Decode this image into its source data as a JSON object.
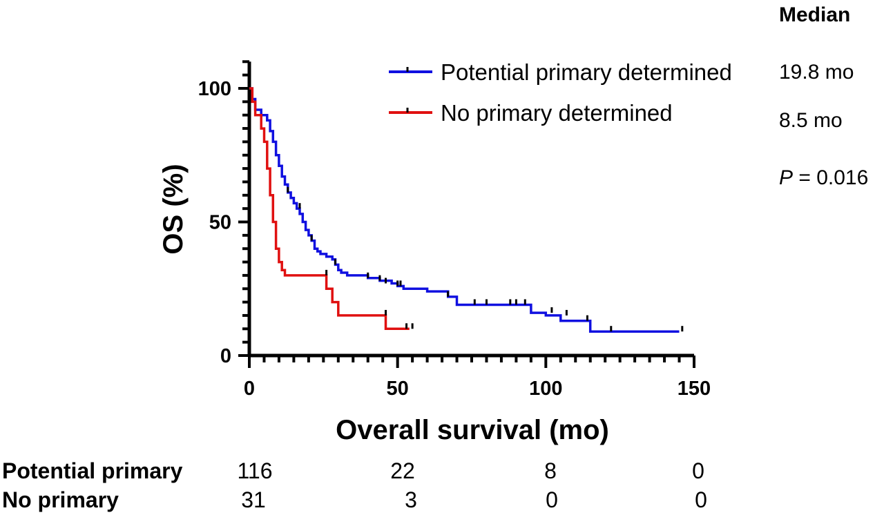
{
  "chart_data": {
    "type": "line",
    "step": true,
    "xlabel": "Overall survival (mo)",
    "ylabel": "OS (%)",
    "xlim": [
      0,
      150
    ],
    "ylim": [
      0,
      110
    ],
    "x_ticks": [
      "0",
      "50",
      "100",
      "150"
    ],
    "y_ticks": [
      "0",
      "50",
      "100"
    ],
    "legend_position": "top-right",
    "series": [
      {
        "name": "Potential primary determined",
        "color": "#1010e0",
        "x": [
          0,
          1,
          2,
          4,
          6,
          7,
          8,
          9,
          10,
          11,
          12,
          13,
          14,
          15,
          16,
          17,
          18,
          19,
          20,
          21,
          22,
          23,
          24,
          26,
          28,
          29,
          30,
          31,
          33,
          40,
          44,
          48,
          50,
          52,
          60,
          67,
          70,
          95,
          100,
          105,
          115,
          145
        ],
        "y": [
          100,
          96,
          92,
          90,
          88,
          84,
          80,
          75,
          71,
          67,
          64,
          61,
          59,
          57,
          55,
          53,
          50,
          47,
          45,
          43,
          40,
          39,
          38,
          37,
          36,
          34,
          32,
          31,
          30,
          29,
          28,
          27,
          26,
          25,
          24,
          22,
          19,
          16,
          15,
          13,
          9,
          9
        ],
        "censor_x": [
          13,
          17,
          21,
          29,
          40,
          44,
          46,
          50,
          51,
          67,
          76,
          80,
          88,
          90,
          93,
          102,
          107,
          114,
          122,
          146
        ],
        "censor_y": [
          61,
          55,
          43,
          34,
          29,
          28,
          27,
          26,
          26,
          22,
          19,
          19,
          19,
          19,
          19,
          16,
          15,
          13,
          9,
          9
        ]
      },
      {
        "name": "No primary determined",
        "color": "#e01010",
        "x": [
          0,
          1,
          2,
          4,
          5,
          6,
          7,
          8,
          9,
          10,
          11,
          12,
          26,
          28,
          30,
          31,
          46,
          54
        ],
        "y": [
          100,
          95,
          90,
          85,
          80,
          70,
          60,
          50,
          40,
          35,
          32,
          30,
          25,
          20,
          15,
          15,
          10,
          10
        ],
        "censor_x": [
          26,
          46,
          53,
          55
        ],
        "censor_y": [
          30,
          15,
          10,
          10
        ]
      }
    ]
  },
  "annotations": {
    "median_header": "Median",
    "median_values": [
      "19.8 mo",
      "8.5 mo"
    ],
    "p_label": "P",
    "p_value": " = 0.016"
  },
  "risk_table": {
    "rows": [
      {
        "label": "Potential primary",
        "values": [
          "116",
          "22",
          "8",
          "0"
        ]
      },
      {
        "label": "No primary",
        "values": [
          "31",
          "3",
          "0",
          "0"
        ]
      }
    ]
  }
}
